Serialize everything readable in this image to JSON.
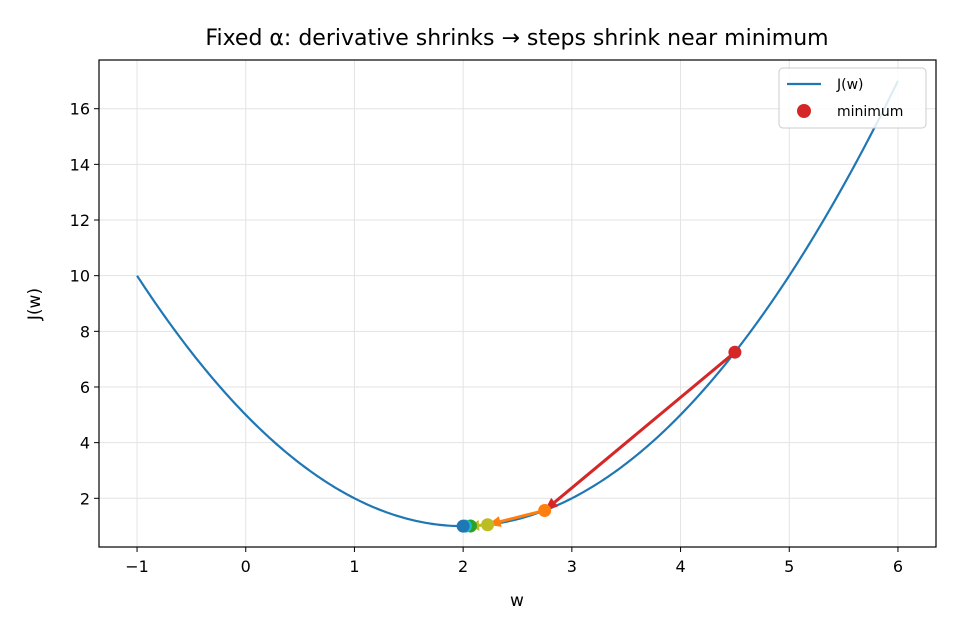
{
  "chart_data": {
    "type": "line",
    "title": "Fixed α: derivative shrinks → steps shrink near minimum",
    "xlabel": "w",
    "ylabel": "J(w)",
    "xlim": [
      -1.35,
      6.35
    ],
    "ylim": [
      0.25,
      17.75
    ],
    "xticks": [
      -1,
      0,
      1,
      2,
      3,
      4,
      5,
      6
    ],
    "xtick_labels": [
      "−1",
      "0",
      "1",
      "2",
      "3",
      "4",
      "5",
      "6"
    ],
    "yticks": [
      2,
      4,
      6,
      8,
      10,
      12,
      14,
      16
    ],
    "ytick_labels": [
      "2",
      "4",
      "6",
      "8",
      "10",
      "12",
      "14",
      "16"
    ],
    "grid": true,
    "legend_position": "top-right",
    "curve": {
      "name": "J(w)",
      "function": "(w - 2)^2 + 1",
      "x_range": [
        -1,
        6
      ],
      "color": "#1f77b4"
    },
    "steps": [
      {
        "w": 4.5,
        "J": 7.25,
        "color": "#d62728"
      },
      {
        "w": 2.75,
        "J": 1.5625,
        "color": "#ff7f0e"
      },
      {
        "w": 2.225,
        "J": 1.0506,
        "color": "#bcbd22"
      },
      {
        "w": 2.0675,
        "J": 1.0046,
        "color": "#2ca02c"
      },
      {
        "w": 2.0203,
        "J": 1.0004,
        "color": "#17becf"
      },
      {
        "w": 2.0,
        "J": 1.0,
        "color": "#1f77b4"
      }
    ],
    "arrows": [
      {
        "from": [
          4.5,
          7.25
        ],
        "to": [
          2.75,
          1.5625
        ],
        "color": "#d62728"
      },
      {
        "from": [
          2.75,
          1.5625
        ],
        "to": [
          2.225,
          1.0506
        ],
        "color": "#ff7f0e"
      },
      {
        "from": [
          2.225,
          1.0506
        ],
        "to": [
          2.0675,
          1.0046
        ],
        "color": "#bcbd22"
      }
    ],
    "legend": [
      {
        "label": "J(w)",
        "kind": "line",
        "color": "#1f77b4"
      },
      {
        "label": "minimum",
        "kind": "marker",
        "color": "#d62728"
      }
    ]
  }
}
